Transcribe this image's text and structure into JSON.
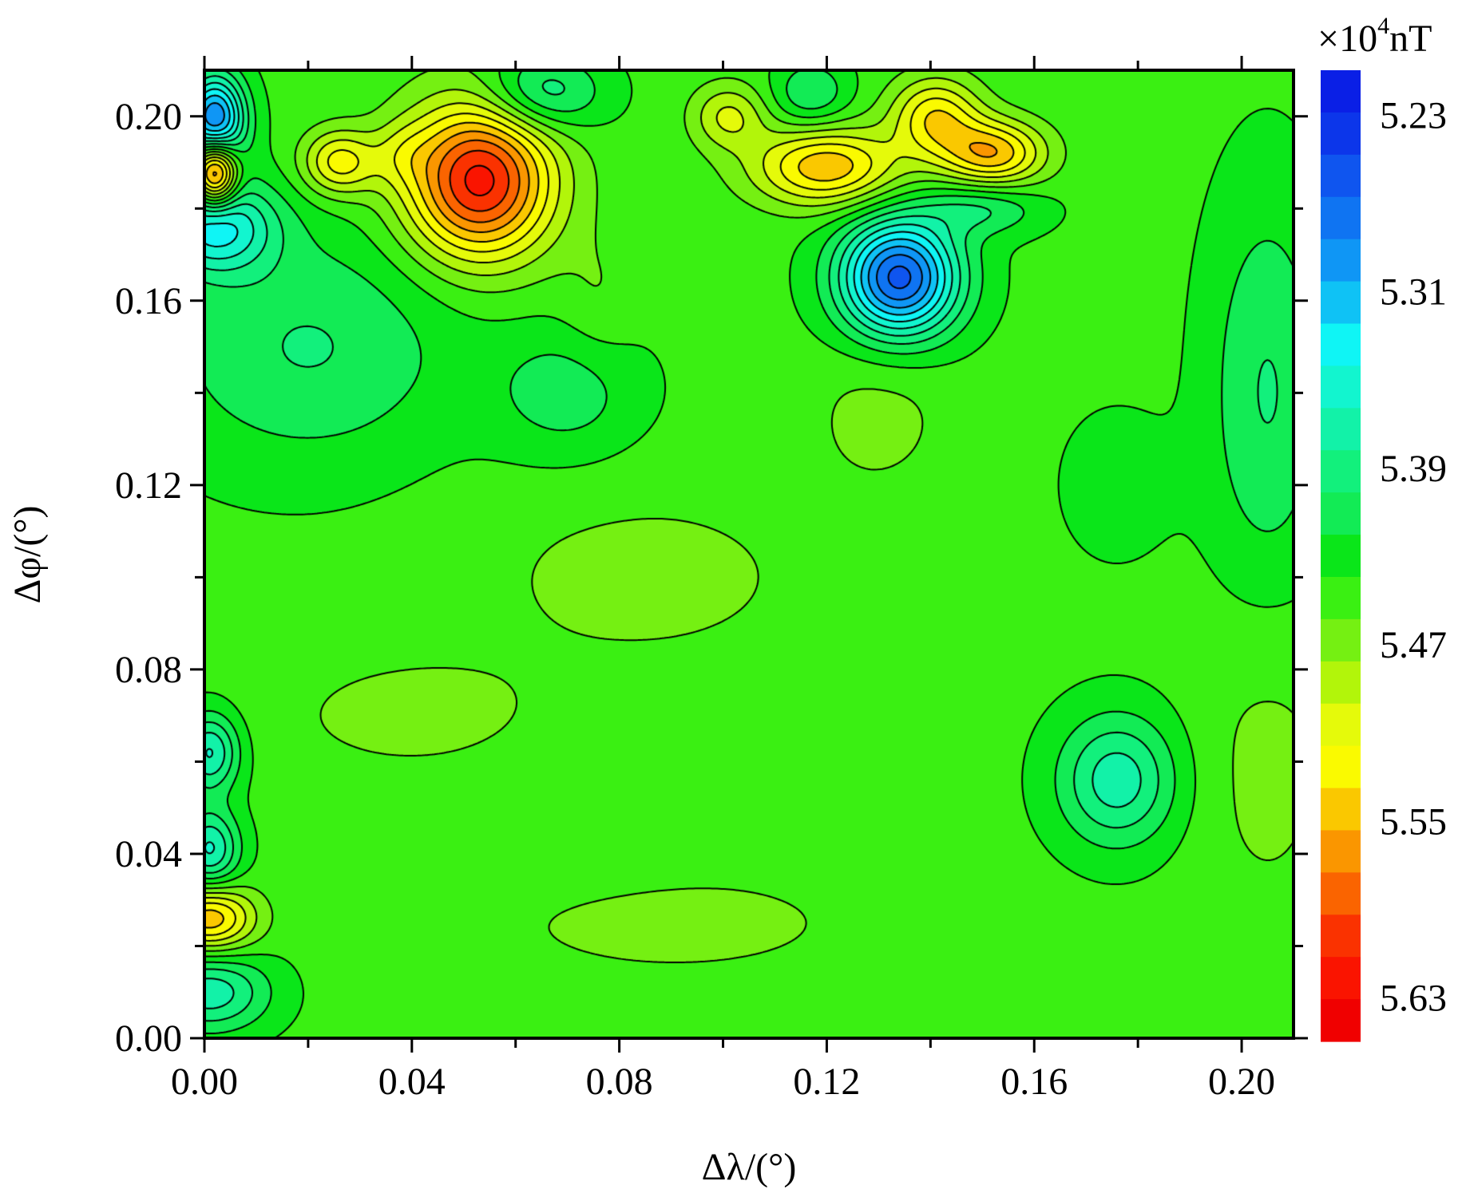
{
  "chart_data": {
    "type": "heatmap",
    "subtype": "filled-contour",
    "xlabel": "Δλ/(°)",
    "ylabel": "Δφ/(°)",
    "xlim": [
      0.0,
      0.21
    ],
    "ylim": [
      0.0,
      0.21
    ],
    "x_ticks": [
      "0.00",
      "0.04",
      "0.08",
      "0.12",
      "0.16",
      "0.20"
    ],
    "y_ticks": [
      "0.00",
      "0.04",
      "0.08",
      "0.12",
      "0.16",
      "0.20"
    ],
    "x_tick_values": [
      0.0,
      0.04,
      0.08,
      0.12,
      0.16,
      0.2
    ],
    "y_tick_values": [
      0.0,
      0.04,
      0.08,
      0.12,
      0.16,
      0.2
    ],
    "minor_tick_step": 0.02,
    "colorbar": {
      "unit_prefix": "×10",
      "unit_exponent": "4",
      "unit_suffix": "nT",
      "min": 5.21,
      "max": 5.65,
      "top_is": "min",
      "tick_labels": [
        "5.23",
        "5.31",
        "5.39",
        "5.47",
        "5.55",
        "5.63"
      ],
      "tick_values": [
        5.23,
        5.31,
        5.39,
        5.47,
        5.55,
        5.63
      ],
      "colors": [
        "#0a1fe6",
        "#0c36ea",
        "#0f55ef",
        "#0f74f2",
        "#0f96f5",
        "#0fc2f5",
        "#0ff5f5",
        "#12f5cf",
        "#12f2a8",
        "#12f07c",
        "#12eb55",
        "#0ae619",
        "#3af012",
        "#75f012",
        "#b2f50a",
        "#e5fa0a",
        "#fafa00",
        "#fac800",
        "#fa9600",
        "#fa6400",
        "#fa3200",
        "#fa1400",
        "#f00000"
      ]
    },
    "background_value": 5.445,
    "features": [
      {
        "x": 0.053,
        "y": 0.186,
        "value": 5.62,
        "sx": 0.01,
        "sy": 0.012
      },
      {
        "x": 0.134,
        "y": 0.165,
        "value": 5.26,
        "sx": 0.008,
        "sy": 0.009
      },
      {
        "x": 0.12,
        "y": 0.189,
        "value": 5.55,
        "sx": 0.01,
        "sy": 0.006
      },
      {
        "x": 0.152,
        "y": 0.192,
        "value": 5.55,
        "sx": 0.007,
        "sy": 0.005
      },
      {
        "x": 0.026,
        "y": 0.19,
        "value": 5.525,
        "sx": 0.005,
        "sy": 0.005
      },
      {
        "x": 0.002,
        "y": 0.176,
        "value": 5.34,
        "sx": 0.008,
        "sy": 0.007
      },
      {
        "x": 0.002,
        "y": 0.199,
        "value": 5.28,
        "sx": 0.004,
        "sy": 0.007
      },
      {
        "x": 0.002,
        "y": 0.188,
        "value": 5.63,
        "sx": 0.003,
        "sy": 0.005
      },
      {
        "x": 0.065,
        "y": 0.205,
        "value": 5.38,
        "sx": 0.008,
        "sy": 0.006
      },
      {
        "x": 0.117,
        "y": 0.205,
        "value": 5.4,
        "sx": 0.005,
        "sy": 0.005
      },
      {
        "x": 0.141,
        "y": 0.2,
        "value": 5.53,
        "sx": 0.006,
        "sy": 0.006
      },
      {
        "x": 0.15,
        "y": 0.18,
        "value": 5.4,
        "sx": 0.008,
        "sy": 0.004
      },
      {
        "x": 0.038,
        "y": 0.192,
        "value": 5.47,
        "sx": 0.004,
        "sy": 0.005
      },
      {
        "x": 0.101,
        "y": 0.2,
        "value": 5.5,
        "sx": 0.005,
        "sy": 0.005
      },
      {
        "x": 0.076,
        "y": 0.16,
        "value": 5.46,
        "sx": 0.005,
        "sy": 0.01
      },
      {
        "x": 0.02,
        "y": 0.15,
        "value": 5.4,
        "sx": 0.02,
        "sy": 0.018
      },
      {
        "x": 0.07,
        "y": 0.14,
        "value": 5.41,
        "sx": 0.01,
        "sy": 0.01
      },
      {
        "x": 0.176,
        "y": 0.056,
        "value": 5.37,
        "sx": 0.008,
        "sy": 0.01
      },
      {
        "x": 0.075,
        "y": 0.045,
        "value": 5.44,
        "sx": 0.015,
        "sy": 0.012
      },
      {
        "x": 0.001,
        "y": 0.062,
        "value": 5.36,
        "sx": 0.004,
        "sy": 0.006
      },
      {
        "x": 0.001,
        "y": 0.041,
        "value": 5.36,
        "sx": 0.004,
        "sy": 0.006
      },
      {
        "x": 0.001,
        "y": 0.026,
        "value": 5.55,
        "sx": 0.006,
        "sy": 0.005
      },
      {
        "x": 0.001,
        "y": 0.01,
        "value": 5.37,
        "sx": 0.008,
        "sy": 0.006
      },
      {
        "x": 0.085,
        "y": 0.1,
        "value": 5.465,
        "sx": 0.025,
        "sy": 0.015
      },
      {
        "x": 0.04,
        "y": 0.07,
        "value": 5.465,
        "sx": 0.02,
        "sy": 0.01
      },
      {
        "x": 0.09,
        "y": 0.025,
        "value": 5.465,
        "sx": 0.03,
        "sy": 0.01
      },
      {
        "x": 0.13,
        "y": 0.135,
        "value": 5.465,
        "sx": 0.01,
        "sy": 0.012
      },
      {
        "x": 0.205,
        "y": 0.06,
        "value": 5.465,
        "sx": 0.01,
        "sy": 0.025
      },
      {
        "x": 0.205,
        "y": 0.14,
        "value": 5.4,
        "sx": 0.008,
        "sy": 0.03
      },
      {
        "x": 0.176,
        "y": 0.12,
        "value": 5.43,
        "sx": 0.008,
        "sy": 0.012
      }
    ]
  }
}
